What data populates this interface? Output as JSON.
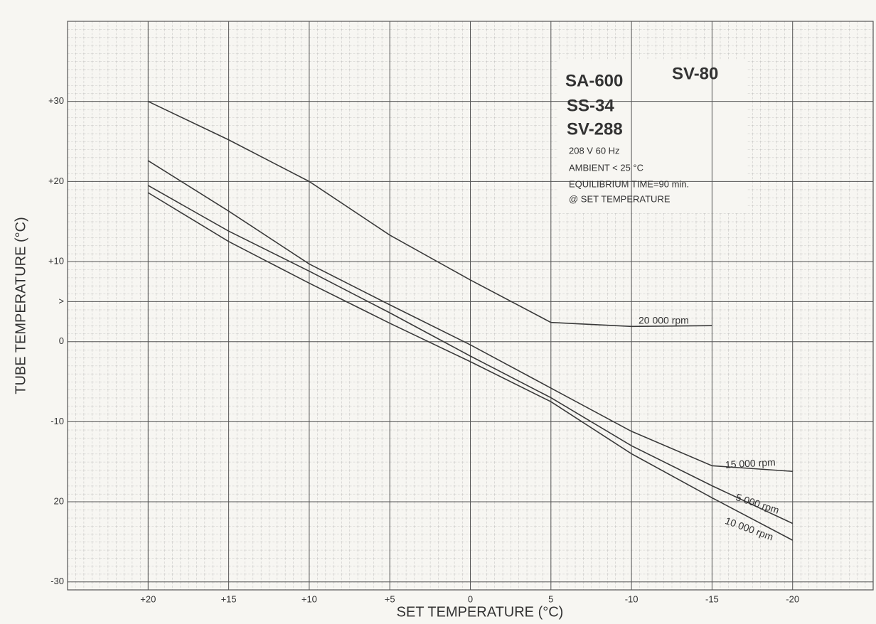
{
  "chart_data": {
    "type": "line",
    "x_label": "SET TEMPERATURE (°C)",
    "y_label": "TUBE TEMPERATURE (°C)",
    "annotations": [
      "SA-600",
      "SV-80",
      "SS-34",
      "SV-288",
      "208 V  60 Hz",
      "AMBIENT < 25 °C",
      "EQUILIBRIUM TIME=90 min.",
      "@ SET TEMPERATURE"
    ],
    "x": [
      20,
      15,
      10,
      5,
      0,
      -5,
      -10,
      -15,
      -20
    ],
    "series": [
      {
        "name": "20 000 rpm",
        "color": "#3a3a3a",
        "values": [
          30,
          25.2,
          20,
          13.3,
          7.7,
          2.4,
          1.9,
          2,
          null
        ]
      },
      {
        "name": "15 000 rpm",
        "color": "#3a3a3a",
        "values": [
          22.6,
          16.3,
          9.7,
          4.6,
          -0.4,
          -5.8,
          -11.2,
          -15.5,
          -16.2
        ]
      },
      {
        "name": "5 000 rpm",
        "color": "#3a3a3a",
        "values": [
          19.5,
          13.8,
          8.8,
          3.6,
          -1.8,
          -7,
          -13,
          -18,
          -22.7
        ]
      },
      {
        "name": "10 000 rpm",
        "color": "#3a3a3a",
        "values": [
          18.6,
          12.5,
          7.3,
          2.3,
          -2.5,
          -7.5,
          -14,
          -19.5,
          -24.8
        ]
      }
    ],
    "xlim": [
      25,
      -25
    ],
    "ylim": [
      -31,
      40
    ],
    "xticks": [
      {
        "value": 20,
        "label": "+20"
      },
      {
        "value": 15,
        "label": "+15"
      },
      {
        "value": 10,
        "label": "+10"
      },
      {
        "value": 5,
        "label": "+5"
      },
      0,
      {
        "value": -5,
        "label": "5"
      },
      -10,
      -15,
      -20
    ],
    "yticks": [
      {
        "value": 30,
        "label": "+30"
      },
      {
        "value": 20,
        "label": "+20"
      },
      {
        "value": 10,
        "label": "+10"
      },
      {
        "value": 5,
        "label": ">"
      },
      0,
      -10,
      {
        "value": -20,
        "label": "20"
      },
      -30
    ],
    "grid": true
  }
}
